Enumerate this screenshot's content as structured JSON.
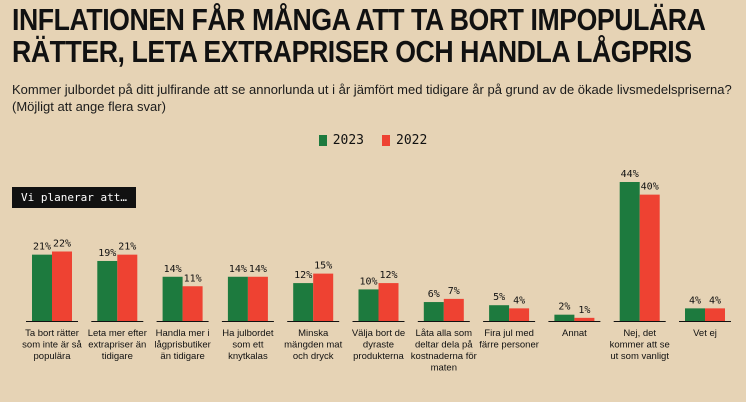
{
  "title_lines": [
    "INFLATIONEN FÅR MÅNGA ATT TA BORT IMPOPULÄRA",
    "RÄTTER, LETA EXTRAPRISER OCH HANDLA LÅGPRIS"
  ],
  "subtitle_lines": [
    "Kommer julbordet på ditt julfirande att se annorlunda ut i år jämfört med tidigare år på grund av de ökade livsmedelspriserna?",
    "(Möjligt att ange flera svar)"
  ],
  "tag_label": "Vi planerar att…",
  "colors": {
    "2023": "#1d7a3e",
    "2022": "#ee4232"
  },
  "chart_data": {
    "type": "bar",
    "series": [
      {
        "name": "2023",
        "values": [
          21,
          19,
          14,
          14,
          12,
          10,
          6,
          5,
          2,
          44,
          4
        ]
      },
      {
        "name": "2022",
        "values": [
          22,
          21,
          11,
          14,
          15,
          12,
          7,
          4,
          1,
          40,
          4
        ]
      }
    ],
    "categories": [
      [
        "Ta bort rätter",
        "som inte är så",
        "populära"
      ],
      [
        "Leta mer efter",
        "extrapriser än",
        "tidigare"
      ],
      [
        "Handla mer i",
        "lågprisbutiker",
        "än tidigare"
      ],
      [
        "Ha julbordet",
        "som ett",
        "knytkalas"
      ],
      [
        "Minska",
        "mängden mat",
        "och dryck"
      ],
      [
        "Välja bort de",
        "dyraste",
        "produkterna"
      ],
      [
        "Låta alla som",
        "deltar dela på",
        "kostnaderna för",
        "maten"
      ],
      [
        "Fira jul med",
        "färre personer"
      ],
      [
        "Annat"
      ],
      [
        "Nej, det",
        "kommer att se",
        "ut som vanligt"
      ],
      [
        "Vet ej"
      ]
    ],
    "value_suffix": "%",
    "ylim": [
      0,
      44
    ],
    "legend_position": "top-center"
  }
}
